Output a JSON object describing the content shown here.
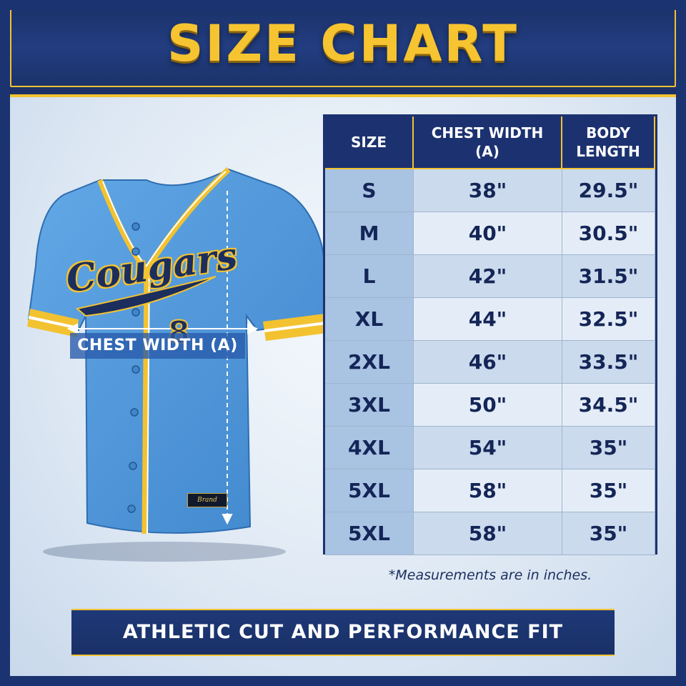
{
  "header": {
    "title": "SIZE CHART"
  },
  "jersey": {
    "wordmark": "Cougars",
    "chest_label": "CHEST WIDTH  (A)",
    "tag_text": "Brand",
    "colors": {
      "body": "#4f97d8",
      "trim": "#f2c230",
      "navy": "#1c2e5e"
    }
  },
  "table": {
    "headers": [
      {
        "line1": "SIZE",
        "line2": ""
      },
      {
        "line1": "CHEST WIDTH",
        "line2": "(A)"
      },
      {
        "line1": "BODY",
        "line2": "LENGTH"
      }
    ],
    "rows": [
      {
        "size": "S",
        "chest": "38\"",
        "length": "29.5\""
      },
      {
        "size": "M",
        "chest": "40\"",
        "length": "30.5\""
      },
      {
        "size": "L",
        "chest": "42\"",
        "length": "31.5\""
      },
      {
        "size": "XL",
        "chest": "44\"",
        "length": "32.5\""
      },
      {
        "size": "2XL",
        "chest": "46\"",
        "length": "33.5\""
      },
      {
        "size": "3XL",
        "chest": "50\"",
        "length": "34.5\""
      },
      {
        "size": "4XL",
        "chest": "54\"",
        "length": "35\""
      },
      {
        "size": "5XL",
        "chest": "58\"",
        "length": "35\""
      },
      {
        "size": "5XL",
        "chest": "58\"",
        "length": "35\""
      }
    ]
  },
  "note": "*Measurements are in inches.",
  "footer": {
    "text": "ATHLETIC CUT AND PERFORMANCE FIT"
  }
}
